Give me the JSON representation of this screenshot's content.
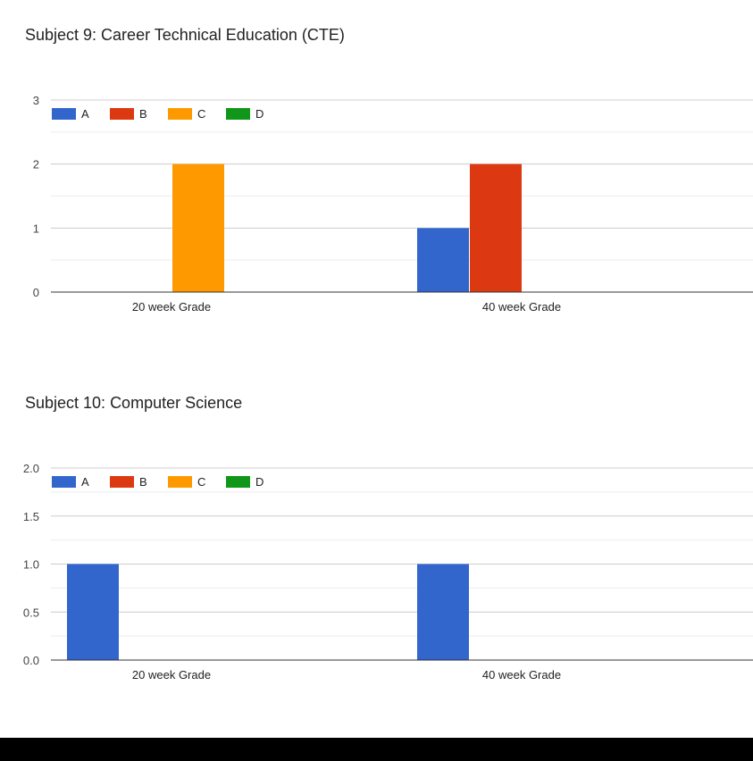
{
  "chart_data": [
    {
      "type": "bar",
      "title": "Subject 9: Career Technical Education (CTE)",
      "categories": [
        "20 week Grade",
        "40 week Grade"
      ],
      "series": [
        {
          "name": "A",
          "color": "#3366cc",
          "values": [
            0,
            1
          ]
        },
        {
          "name": "B",
          "color": "#dc3912",
          "values": [
            0,
            2
          ]
        },
        {
          "name": "C",
          "color": "#ff9900",
          "values": [
            2,
            0
          ]
        },
        {
          "name": "D",
          "color": "#109618",
          "values": [
            0,
            0
          ]
        }
      ],
      "ylim": [
        0,
        3
      ],
      "yticks": [
        "0",
        "1",
        "2",
        "3"
      ],
      "xlabel": "",
      "ylabel": "",
      "grid": true,
      "legend_position": "top-left"
    },
    {
      "type": "bar",
      "title": "Subject 10: Computer Science",
      "categories": [
        "20 week Grade",
        "40 week Grade"
      ],
      "series": [
        {
          "name": "A",
          "color": "#3366cc",
          "values": [
            1,
            1
          ]
        },
        {
          "name": "B",
          "color": "#dc3912",
          "values": [
            0,
            0
          ]
        },
        {
          "name": "C",
          "color": "#ff9900",
          "values": [
            0,
            0
          ]
        },
        {
          "name": "D",
          "color": "#109618",
          "values": [
            0,
            0
          ]
        }
      ],
      "ylim": [
        0,
        2
      ],
      "yticks": [
        "0.0",
        "0.5",
        "1.0",
        "1.5",
        "2.0"
      ],
      "xlabel": "",
      "ylabel": "",
      "grid": true,
      "legend_position": "top-left"
    }
  ]
}
